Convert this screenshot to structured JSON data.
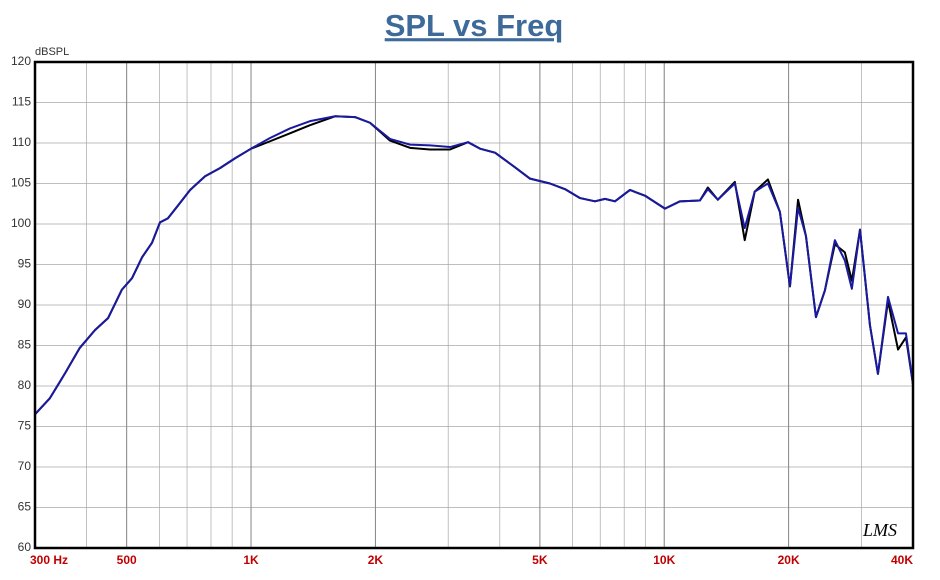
{
  "chart_data": {
    "type": "line",
    "title": "SPL vs Freq",
    "y_label": "dBSPL",
    "annotation": "LMS",
    "xscale": "log",
    "grid": true,
    "xlim": [
      300,
      40000
    ],
    "ylim": [
      60,
      120
    ],
    "yticks": [
      60,
      65,
      70,
      75,
      80,
      85,
      90,
      95,
      100,
      105,
      110,
      115,
      120
    ],
    "xticks": [
      {
        "value": 300,
        "label": "300 Hz"
      },
      500,
      {
        "value": 1000,
        "label": "1K"
      },
      {
        "value": 2000,
        "label": "2K"
      },
      {
        "value": 5000,
        "label": "5K"
      },
      {
        "value": 10000,
        "label": "10K"
      },
      {
        "value": 20000,
        "label": "20K"
      },
      {
        "value": 40000,
        "label": "40K"
      }
    ],
    "x": [
      300,
      326,
      355,
      385,
      419,
      451,
      487,
      515,
      545,
      576,
      602,
      629,
      666,
      712,
      774,
      841,
      914,
      1000,
      1110,
      1242,
      1389,
      1597,
      1785,
      1940,
      2169,
      2425,
      2711,
      3031,
      3351,
      3582,
      3895,
      4353,
      4734,
      5290,
      5753,
      6255,
      6796,
      7188,
      7600,
      8262,
      8980,
      10041,
      10917,
      12199,
      12750,
      13482,
      14820,
      15661,
      16557,
      17820,
      19051,
      20150,
      21080,
      22030,
      23290,
      24480,
      25880,
      27360,
      28450,
      29770,
      31470,
      32900,
      34800,
      36800,
      38460,
      40000
    ],
    "series": [
      {
        "color": "#000000",
        "values": [
          76.5,
          78.5,
          81.6,
          84.7,
          86.9,
          88.4,
          91.9,
          93.3,
          95.9,
          97.7,
          100.2,
          100.7,
          102.3,
          104.2,
          105.9,
          106.9,
          108.1,
          109.3,
          110.2,
          111.2,
          112.2,
          113.3,
          113.2,
          112.5,
          110.3,
          109.4,
          109.2,
          109.2,
          110.1,
          109.3,
          108.8,
          107,
          105.6,
          105,
          104.3,
          103.2,
          102.8,
          103.1,
          102.8,
          104.2,
          103.5,
          101.9,
          102.8,
          102.9,
          104.5,
          103,
          105.2,
          98,
          104,
          105.5,
          101.5,
          92.3,
          103,
          98.5,
          88.5,
          91.8,
          97.5,
          96.5,
          93,
          99.3,
          87.5,
          81.5,
          90.5,
          84.5,
          86,
          80.2
        ]
      },
      {
        "color": "#1a1aa0",
        "values": [
          76.5,
          78.5,
          81.6,
          84.7,
          86.9,
          88.4,
          91.9,
          93.3,
          95.9,
          97.7,
          100.2,
          100.7,
          102.3,
          104.2,
          105.9,
          106.9,
          108.1,
          109.3,
          110.6,
          111.8,
          112.7,
          113.3,
          113.2,
          112.5,
          110.5,
          109.8,
          109.7,
          109.5,
          110.1,
          109.3,
          108.8,
          107,
          105.6,
          105,
          104.3,
          103.2,
          102.8,
          103.1,
          102.8,
          104.2,
          103.5,
          101.9,
          102.8,
          102.9,
          104.3,
          103,
          105,
          99.5,
          104,
          105,
          101.5,
          92.3,
          102,
          98.5,
          88.5,
          91.8,
          98,
          95.5,
          92,
          99.3,
          87.5,
          81.5,
          91,
          86.5,
          86.5,
          80.2
        ]
      }
    ]
  }
}
